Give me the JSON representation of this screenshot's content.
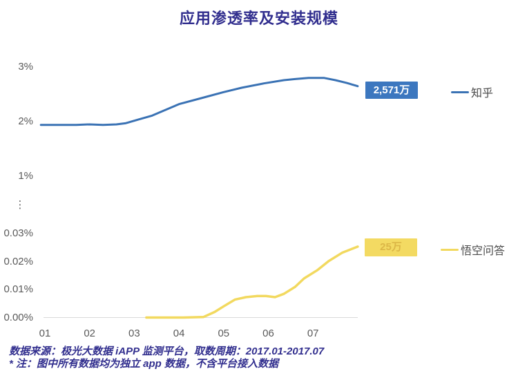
{
  "title": "应用渗透率及安装规模",
  "colors": {
    "title": "#312E8E",
    "footer": "#312E8E",
    "axis_text": "#595959",
    "baseline": "#D9D9D9",
    "zhihu_line": "#3A72B4",
    "zhihu_badge_bg": "#3C77BF",
    "zhihu_badge_text": "#FFFFFF",
    "wukong_line": "#F2D95F",
    "wukong_badge_bg": "#F3DA62",
    "wukong_badge_text": "#DCB747"
  },
  "chart_data": {
    "type": "line",
    "title": "应用渗透率及安装规模",
    "xlabel": "",
    "ylabel": "",
    "x_axis": {
      "tick_labels": [
        "01",
        "02",
        "03",
        "04",
        "05",
        "06",
        "07"
      ],
      "tick_positions": [
        1,
        2,
        3,
        4,
        5,
        6,
        7
      ],
      "range": [
        0.9,
        8.0
      ]
    },
    "y_axis_upper": {
      "unit": "%",
      "ticks": [
        {
          "label": "3%",
          "value": 3
        },
        {
          "label": "2%",
          "value": 2
        },
        {
          "label": "1%",
          "value": 1
        }
      ]
    },
    "axis_break": "⋮",
    "y_axis_lower": {
      "unit": "%",
      "ticks": [
        {
          "label": "0.03%",
          "value": 0.03
        },
        {
          "label": "0.02%",
          "value": 0.02
        },
        {
          "label": "0.01%",
          "value": 0.01
        },
        {
          "label": "0.00%",
          "value": 0.0
        }
      ],
      "baseline_value": 0.0
    },
    "legend_position": "right",
    "grid": false,
    "series": [
      {
        "name": "知乎",
        "panel": "upper",
        "color": "#3A72B4",
        "value_label": "2,571万",
        "points": [
          [
            0.91,
            1.94
          ],
          [
            1.3,
            1.94
          ],
          [
            1.7,
            1.94
          ],
          [
            2.0,
            1.95
          ],
          [
            2.3,
            1.94
          ],
          [
            2.6,
            1.95
          ],
          [
            2.8,
            1.97
          ],
          [
            3.1,
            2.04
          ],
          [
            3.4,
            2.11
          ],
          [
            3.6,
            2.18
          ],
          [
            4.0,
            2.32
          ],
          [
            4.5,
            2.43
          ],
          [
            5.0,
            2.54
          ],
          [
            5.4,
            2.62
          ],
          [
            5.9,
            2.7
          ],
          [
            6.35,
            2.76
          ],
          [
            6.6,
            2.78
          ],
          [
            6.9,
            2.8
          ],
          [
            7.25,
            2.8
          ],
          [
            7.5,
            2.76
          ],
          [
            7.75,
            2.71
          ],
          [
            8.0,
            2.65
          ]
        ]
      },
      {
        "name": "悟空问答",
        "panel": "lower",
        "color": "#F2D95F",
        "value_label": "25万",
        "points": [
          [
            3.27,
            0.0
          ],
          [
            3.7,
            0.0
          ],
          [
            4.1,
            0.0
          ],
          [
            4.55,
            0.0002
          ],
          [
            4.8,
            0.002
          ],
          [
            5.0,
            0.004
          ],
          [
            5.25,
            0.0064
          ],
          [
            5.5,
            0.0073
          ],
          [
            5.75,
            0.0077
          ],
          [
            5.95,
            0.0077
          ],
          [
            6.15,
            0.0073
          ],
          [
            6.35,
            0.0085
          ],
          [
            6.6,
            0.011
          ],
          [
            6.8,
            0.014
          ],
          [
            7.1,
            0.017
          ],
          [
            7.35,
            0.0202
          ],
          [
            7.65,
            0.0232
          ],
          [
            8.0,
            0.0254
          ]
        ]
      }
    ]
  },
  "footer": {
    "line1": "数据来源：极光大数据 iAPP 监测平台，取数周期：2017.01-2017.07",
    "line2": "* 注：图中所有数据均为独立 app 数据，不含平台接入数据"
  }
}
